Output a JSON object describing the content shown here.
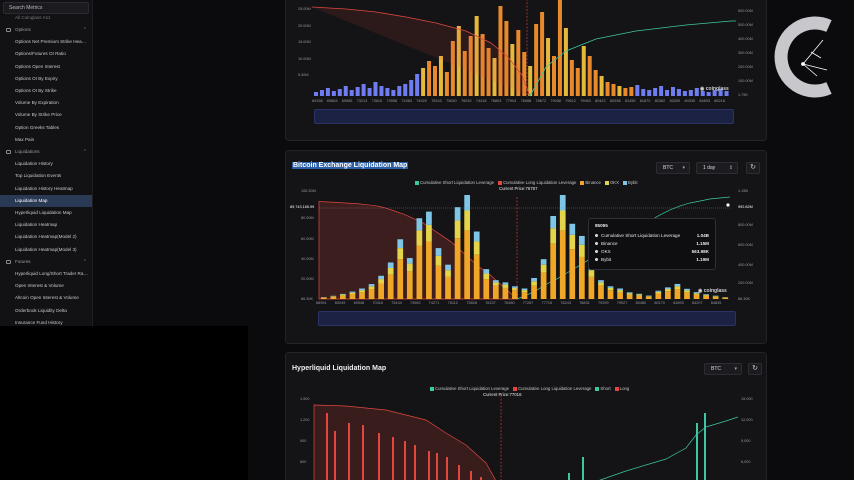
{
  "sidebar": {
    "search_placeholder": "Search Metrics",
    "top_truncated": "All Coinglass A11",
    "rows": [
      {
        "label": "Options",
        "type": "section"
      },
      {
        "label": "Options Net Premium Strike Hea…",
        "type": "item"
      },
      {
        "label": "Options/Futures OI Ratio",
        "type": "item"
      },
      {
        "label": "Options Open Interest",
        "type": "item"
      },
      {
        "label": "Options OI By Expiry",
        "type": "item"
      },
      {
        "label": "Options OI By Strike",
        "type": "item"
      },
      {
        "label": "Volume By Expiration",
        "type": "item"
      },
      {
        "label": "Volume By Strike Price",
        "type": "item"
      },
      {
        "label": "Option Greeks Tables",
        "type": "item"
      },
      {
        "label": "Max Pain",
        "type": "item"
      },
      {
        "label": "Liquidations",
        "type": "section"
      },
      {
        "label": "Liquidation History",
        "type": "item"
      },
      {
        "label": "Top Liquidation Events",
        "type": "item"
      },
      {
        "label": "Liquidation History Heatmap",
        "type": "item"
      },
      {
        "label": "Liquidation Map",
        "type": "item",
        "active": true
      },
      {
        "label": "Hyperliquid Liquidation Map",
        "type": "item"
      },
      {
        "label": "Liquidation Heatmap",
        "type": "item"
      },
      {
        "label": "Liquidation Heatmap(Model 2)",
        "type": "item"
      },
      {
        "label": "Liquidation Heatmap(Model 3)",
        "type": "item"
      },
      {
        "label": "Futures",
        "type": "section"
      },
      {
        "label": "Hyperliquid Long/Short Trader Ra…",
        "type": "item"
      },
      {
        "label": "Open Interest & Volume",
        "type": "item"
      },
      {
        "label": "Altcoin Open Interest & Volume",
        "type": "item"
      },
      {
        "label": "Orderbook Liquidity Delta",
        "type": "item"
      },
      {
        "label": "Insurance Fund History",
        "type": "item"
      }
    ]
  },
  "panel_top": {
    "y_ticks_left": [
      "25.00M",
      "20.00M",
      "15.00M",
      "10.00M",
      "5.00M"
    ],
    "y_ticks_right": [
      "600.00M",
      "500.00M",
      "400.00M",
      "300.00M",
      "200.00M",
      "100.00M",
      "1.79K"
    ],
    "x_ticks": [
      "69158",
      "69663",
      "69985",
      "73213",
      "73615",
      "73958",
      "74383",
      "74920",
      "75243",
      "75630",
      "76032",
      "74418",
      "76803",
      "77903",
      "78088",
      "78672",
      "79058",
      "79612",
      "79983",
      "80422",
      "80938",
      "81455",
      "81870",
      "82382",
      "83290",
      "84335",
      "84833",
      "85218"
    ],
    "watermark": "coinglass"
  },
  "panel_mid": {
    "title": "Bitcoin Exchange Liquidation Map",
    "coin_select": "BTC",
    "range_select": "1 day",
    "legend": [
      {
        "label": "Cumulative Short Liquidation Leverage",
        "color": "#3ec7a3"
      },
      {
        "label": "Cumulative Long Liquidation Leverage",
        "color": "#e2473f"
      },
      {
        "label": "Binance",
        "color": "#f0a626"
      },
      {
        "label": "OKX",
        "color": "#e3d44a"
      },
      {
        "label": "Bybit",
        "color": "#7fc6e6"
      }
    ],
    "current_price": "Current Price:76787",
    "y_ticks_left": [
      "106.30M",
      "89,743,165.99",
      "80.00M",
      "60.00M",
      "40.00M",
      "20.00M",
      "86.30K"
    ],
    "y_ticks_right": [
      "1.15B",
      "992.82M",
      "800.00M",
      "600.00M",
      "400.00M",
      "200.00M",
      "86.30K"
    ],
    "x_ticks": [
      "68951",
      "69249",
      "69948",
      "70316",
      "73434",
      "73962",
      "74271",
      "75112",
      "75828",
      "76137",
      "76480",
      "77287",
      "77715",
      "78243",
      "78831",
      "79299",
      "79927",
      "80480",
      "80170",
      "81893",
      "84207",
      "84835"
    ],
    "tooltip": {
      "title": "85095",
      "rows": [
        {
          "label": "Cumulative Short Liquidation Leverage",
          "value": "1.04B"
        },
        {
          "label": "Binance",
          "value": "1.15M"
        },
        {
          "label": "OKX",
          "value": "563.98K"
        },
        {
          "label": "Bybit",
          "value": "1.19M"
        }
      ]
    },
    "watermark": "coinglass",
    "chart_data": {
      "type": "bar",
      "title": "Bitcoin Exchange Liquidation Map",
      "x_range": [
        68951,
        85095
      ],
      "ylim_left": [
        0,
        106300000
      ],
      "ylim_right": [
        0,
        1150000000
      ],
      "series": [
        {
          "name": "Binance",
          "values": [
            1.2,
            2,
            3,
            4.5,
            6,
            9,
            14,
            22,
            36,
            25,
            48,
            52,
            30,
            20,
            55,
            62,
            40,
            18,
            12,
            10,
            8,
            6,
            12,
            24,
            50,
            62,
            45,
            38,
            20,
            12,
            8,
            6,
            4,
            3,
            2,
            5,
            7,
            9,
            6,
            4,
            3,
            2,
            1.2
          ]
        },
        {
          "name": "OKX",
          "values": [
            0.3,
            0.5,
            1,
            1.2,
            2,
            2.5,
            4,
            6,
            10,
            7,
            14,
            15,
            9,
            6,
            16,
            18,
            12,
            5,
            3,
            3,
            2,
            2,
            4,
            7,
            14,
            18,
            13,
            11,
            6,
            3,
            2,
            2,
            1,
            1,
            0.6,
            1.5,
            2,
            2.6,
            1.8,
            1.2,
            0.8,
            0.6,
            0.3
          ]
        },
        {
          "name": "Bybit",
          "values": [
            0.2,
            0.4,
            0.6,
            1,
            1.5,
            2,
            3,
            5,
            8,
            5,
            11,
            12,
            7,
            5,
            12,
            14,
            9,
            4,
            2,
            2,
            1.5,
            1.5,
            3,
            5,
            11,
            14,
            10,
            8,
            4,
            2,
            1.5,
            1.5,
            1,
            0.7,
            0.5,
            1,
            1.5,
            2,
            1.4,
            1,
            0.6,
            0.4,
            0.2
          ]
        }
      ],
      "cumulative_long": [
        92,
        91.5,
        91,
        90.5,
        90,
        89,
        88,
        86,
        83,
        80,
        76,
        72,
        66,
        60,
        54,
        46,
        38,
        30,
        24,
        16,
        8,
        0
      ],
      "cumulative_short": [
        0,
        4,
        9,
        15,
        20,
        26,
        32,
        38,
        44,
        50,
        57,
        64,
        70,
        76,
        82,
        87,
        91,
        94,
        96,
        98,
        99,
        100
      ],
      "current_price": 76787
    }
  },
  "panel_bottom": {
    "title": "Hyperliquid Liquidation Map",
    "coin_select": "BTC",
    "legend": [
      {
        "label": "Cumulative Short Liquidation Leverage",
        "color": "#3ec7a3"
      },
      {
        "label": "Cumulative Long Liquidation Leverage",
        "color": "#e2473f"
      },
      {
        "label": "Short",
        "color": "#3ec7a3"
      },
      {
        "label": "Long",
        "color": "#e2473f"
      }
    ],
    "current_price": "Current Price:77016",
    "y_ticks_left": [
      "1,500",
      "1,200",
      "900",
      "600",
      "300"
    ],
    "y_ticks_right": [
      "15,000",
      "12,000",
      "9,000",
      "6,000",
      "3,000"
    ]
  },
  "colors": {
    "background": "#0b0b0d",
    "panel": "#141416",
    "accent_blue": "#2b5fa8",
    "long_red": "#e2473f",
    "short_green": "#3ec7a3"
  }
}
